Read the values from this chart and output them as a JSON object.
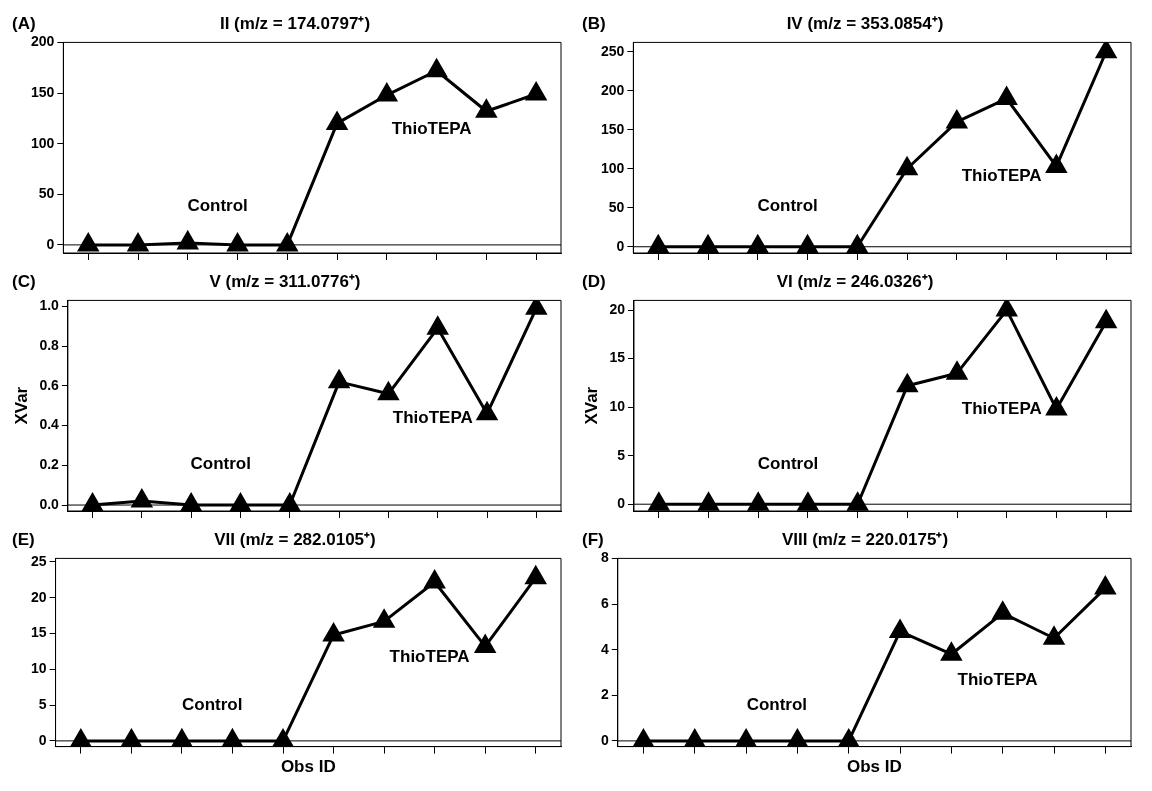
{
  "chart_data": [
    {
      "type": "line",
      "title": "II (m/z = 174.0797⁺)",
      "categories": [
        null,
        null,
        null,
        null,
        null,
        null,
        null,
        null,
        null,
        null
      ],
      "series": [
        {
          "color": "#000000",
          "values": [
            0,
            0,
            2,
            0,
            0,
            120,
            148,
            172,
            132,
            149
          ]
        }
      ],
      "ylim": [
        -8,
        200
      ],
      "yticks": [
        0,
        50,
        100,
        150,
        200
      ],
      "marker": "triangle",
      "tick_labels": "y",
      "ref_lines": [
        {
          "axis": "y",
          "value": 0
        }
      ],
      "annotations": [
        "(A)",
        "Control",
        "ThioTEPA"
      ]
    },
    {
      "type": "line",
      "title": "IV (m/z = 353.0854⁺)",
      "categories": [
        null,
        null,
        null,
        null,
        null,
        null,
        null,
        null,
        null,
        null
      ],
      "series": [
        {
          "color": "#000000",
          "values": [
            0,
            0,
            0,
            0,
            0,
            100,
            160,
            190,
            103,
            250
          ]
        }
      ],
      "ylim": [
        -8,
        262
      ],
      "yticks": [
        0,
        50,
        100,
        150,
        200,
        250
      ],
      "marker": "triangle",
      "tick_labels": "y",
      "ref_lines": [
        {
          "axis": "y",
          "value": 0
        }
      ],
      "annotations": [
        "(B)",
        "Control",
        "ThioTEPA"
      ]
    },
    {
      "type": "line",
      "title": "V (m/z = 311.0776⁺)",
      "ylabel": "XVar",
      "categories": [
        null,
        null,
        null,
        null,
        null,
        null,
        null,
        null,
        null,
        null
      ],
      "series": [
        {
          "color": "#000000",
          "values": [
            0,
            0.02,
            0,
            0,
            0,
            0.62,
            0.56,
            0.89,
            0.46,
            0.99
          ]
        }
      ],
      "ylim": [
        -0.03,
        1.03
      ],
      "yticks": [
        {
          "value": 0,
          "label": "0.0"
        },
        {
          "value": 0.2,
          "label": "0.2"
        },
        {
          "value": 0.4,
          "label": "0.4"
        },
        {
          "value": 0.6,
          "label": "0.6"
        },
        {
          "value": 0.8,
          "label": "0.8"
        },
        {
          "value": 1,
          "label": "1.0"
        }
      ],
      "marker": "triangle",
      "tick_labels": "y",
      "ref_lines": [
        {
          "axis": "y",
          "value": 0
        }
      ],
      "annotations": [
        "(C)",
        "Control",
        "ThioTEPA"
      ]
    },
    {
      "type": "line",
      "title": "VI (m/z = 246.0326⁺)",
      "ylabel": "XVar",
      "categories": [
        null,
        null,
        null,
        null,
        null,
        null,
        null,
        null,
        null,
        null
      ],
      "series": [
        {
          "color": "#000000",
          "values": [
            0,
            0,
            0,
            0,
            0,
            12.2,
            13.5,
            20,
            9.8,
            18.8
          ]
        }
      ],
      "ylim": [
        -0.7,
        21
      ],
      "yticks": [
        0,
        5,
        10,
        15,
        20
      ],
      "marker": "triangle",
      "tick_labels": "y",
      "ref_lines": [
        {
          "axis": "y",
          "value": 0
        }
      ],
      "annotations": [
        "(D)",
        "Control",
        "ThioTEPA"
      ]
    },
    {
      "type": "line",
      "title": "VII (m/z = 282.0105⁺)",
      "xlabel": "Obs ID",
      "categories": [
        null,
        null,
        null,
        null,
        null,
        null,
        null,
        null,
        null,
        null
      ],
      "series": [
        {
          "color": "#000000",
          "values": [
            0,
            0,
            0,
            0,
            0,
            14.8,
            16.7,
            22.2,
            13.2,
            22.8
          ]
        }
      ],
      "ylim": [
        -0.8,
        25.5
      ],
      "yticks": [
        0,
        5,
        10,
        15,
        20,
        25
      ],
      "marker": "triangle",
      "tick_labels": "y",
      "ref_lines": [
        {
          "axis": "y",
          "value": 0
        }
      ],
      "annotations": [
        "(E)",
        "Control",
        "ThioTEPA"
      ]
    },
    {
      "type": "line",
      "title": "VIII (m/z = 220.0175⁺)",
      "xlabel": "Obs ID",
      "categories": [
        null,
        null,
        null,
        null,
        null,
        null,
        null,
        null,
        null,
        null
      ],
      "series": [
        {
          "color": "#000000",
          "values": [
            0,
            0,
            0,
            0,
            0,
            4.8,
            3.8,
            5.6,
            4.5,
            6.7
          ]
        }
      ],
      "ylim": [
        -0.25,
        8
      ],
      "yticks": [
        0,
        2,
        4,
        6,
        8
      ],
      "marker": "triangle",
      "tick_labels": "y",
      "ref_lines": [
        {
          "axis": "y",
          "value": 0
        }
      ],
      "annotations": [
        "(F)",
        "Control",
        "ThioTEPA"
      ]
    }
  ]
}
